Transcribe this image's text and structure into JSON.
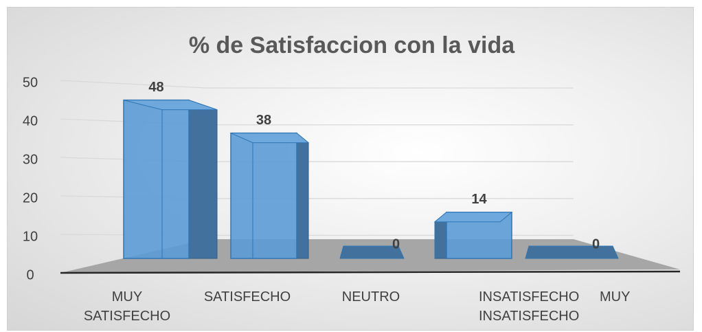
{
  "chart_data": {
    "type": "bar3d",
    "title": "% de Satisfaccion con la vida",
    "categories": [
      "MUY SATISFECHO",
      "SATISFECHO",
      "NEUTRO",
      "INSATISFECHO",
      "MUY INSATISFECHO"
    ],
    "values": [
      48,
      38,
      0,
      14,
      0
    ],
    "color": "#5b9bd5",
    "ylim": [
      0,
      50
    ],
    "yticks": [
      0,
      10,
      20,
      30,
      40,
      50
    ],
    "grid": true
  }
}
